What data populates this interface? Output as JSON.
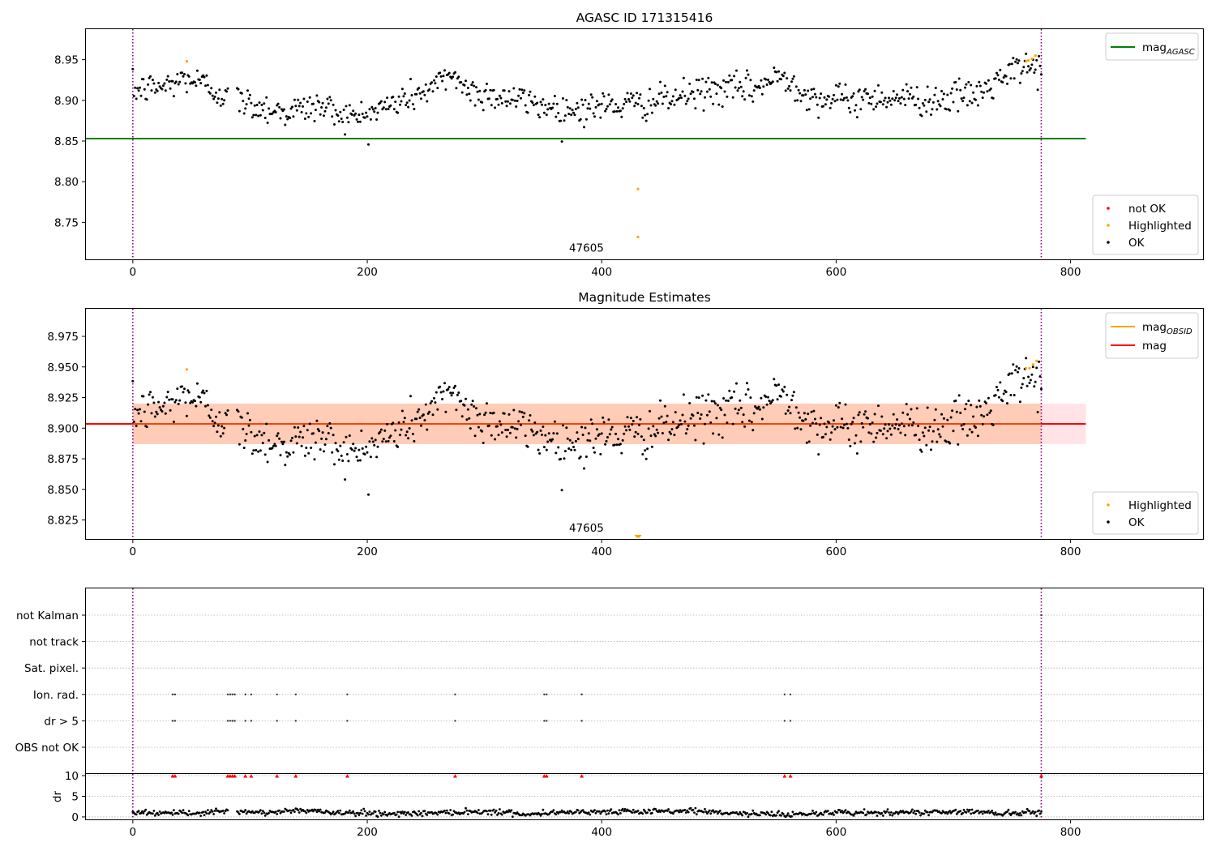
{
  "chart_data": [
    {
      "type": "scatter",
      "title": "AGASC ID 171315416",
      "xlim": [
        -40,
        913
      ],
      "ylim": [
        8.7045,
        8.9875
      ],
      "xticks": [
        0,
        200,
        400,
        600,
        800
      ],
      "yticks": [
        8.75,
        8.8,
        8.85,
        8.9,
        8.95
      ],
      "ytick_labels": [
        "8.75",
        "8.80",
        "8.85",
        "8.90",
        "8.95"
      ],
      "grid": false,
      "hline": {
        "label": "mag",
        "label_sub": "AGASC",
        "value": 8.853,
        "x": [
          -40,
          813
        ],
        "color": "#008000"
      },
      "vlines": [
        0,
        775
      ],
      "vline_color": "#800080",
      "annotation": {
        "text": "47605",
        "x": 387,
        "y": 8.715
      },
      "legend_lines": [
        {
          "label": "mag",
          "sub": "AGASC",
          "color": "#008000"
        }
      ],
      "legend_points": [
        {
          "label": "not OK",
          "color": "#ff0000"
        },
        {
          "label": "Highlighted",
          "color": "#ffa500"
        },
        {
          "label": "OK",
          "color": "#000000"
        }
      ],
      "legend_lines_loc": "upper right",
      "legend_points_loc": "lower right",
      "series": [
        {
          "name": "OK",
          "color": "#000000",
          "n": 775,
          "baseline": 8.9,
          "anchors": [
            [
              0,
              8.912
            ],
            [
              30,
              8.918
            ],
            [
              45,
              8.928
            ],
            [
              60,
              8.92
            ],
            [
              80,
              8.905
            ],
            [
              100,
              8.895
            ],
            [
              130,
              8.886
            ],
            [
              160,
              8.893
            ],
            [
              190,
              8.878
            ],
            [
              230,
              8.9
            ],
            [
              260,
              8.918
            ],
            [
              272,
              8.935
            ],
            [
              285,
              8.912
            ],
            [
              320,
              8.903
            ],
            [
              370,
              8.888
            ],
            [
              400,
              8.893
            ],
            [
              430,
              8.895
            ],
            [
              460,
              8.902
            ],
            [
              490,
              8.912
            ],
            [
              530,
              8.915
            ],
            [
              555,
              8.93
            ],
            [
              580,
              8.903
            ],
            [
              610,
              8.9
            ],
            [
              640,
              8.905
            ],
            [
              680,
              8.9
            ],
            [
              720,
              8.907
            ],
            [
              740,
              8.925
            ],
            [
              760,
              8.942
            ],
            [
              775,
              8.94
            ]
          ],
          "noise": 0.0095,
          "gaps": [
            [
              82,
              88
            ]
          ]
        },
        {
          "name": "Highlighted",
          "color": "#ffa500",
          "points": [
            [
              46,
              8.948
            ],
            [
              431,
              8.791
            ],
            [
              431,
              8.732
            ],
            [
              762,
              8.948
            ],
            [
              764,
              8.949
            ],
            [
              767,
              8.951
            ],
            [
              770,
              8.955
            ]
          ]
        }
      ]
    },
    {
      "type": "scatter",
      "title": "Magnitude Estimates",
      "xlim": [
        -40,
        913
      ],
      "ylim": [
        8.8095,
        8.9975
      ],
      "xticks": [
        0,
        200,
        400,
        600,
        800
      ],
      "yticks": [
        8.825,
        8.85,
        8.875,
        8.9,
        8.925,
        8.95,
        8.975
      ],
      "ytick_labels": [
        "8.825",
        "8.850",
        "8.875",
        "8.900",
        "8.925",
        "8.950",
        "8.975"
      ],
      "grid": false,
      "hline": {
        "label": "mag",
        "value": 8.9035,
        "x": [
          -40,
          813
        ],
        "color": "#ff0000"
      },
      "bands": [
        {
          "x": [
            0,
            813
          ],
          "y": [
            8.887,
            8.92
          ],
          "color": "#ffb0b8",
          "opacity": 0.35
        },
        {
          "x": [
            0,
            775
          ],
          "y": [
            8.887,
            8.92
          ],
          "color": "#ffa060",
          "opacity": 0.35
        }
      ],
      "vlines": [
        0,
        775
      ],
      "vline_color": "#800080",
      "annotation": {
        "text": "47605",
        "x": 387,
        "y": 8.816
      },
      "legend_lines": [
        {
          "label": "mag",
          "sub": "OBSID",
          "color": "#ffa500"
        },
        {
          "label": "mag",
          "sub": "",
          "color": "#ff0000"
        }
      ],
      "legend_points": [
        {
          "label": "Highlighted",
          "color": "#ffa500"
        },
        {
          "label": "OK",
          "color": "#000000"
        }
      ],
      "legend_lines_loc": "upper right",
      "legend_points_loc": "lower right",
      "series": [
        {
          "name": "OK",
          "color": "#000000",
          "n": 775,
          "baseline": 8.9,
          "anchors": [
            [
              0,
              8.912
            ],
            [
              30,
              8.918
            ],
            [
              45,
              8.928
            ],
            [
              60,
              8.92
            ],
            [
              80,
              8.905
            ],
            [
              100,
              8.895
            ],
            [
              130,
              8.886
            ],
            [
              160,
              8.893
            ],
            [
              190,
              8.878
            ],
            [
              230,
              8.9
            ],
            [
              260,
              8.918
            ],
            [
              272,
              8.935
            ],
            [
              285,
              8.912
            ],
            [
              320,
              8.903
            ],
            [
              370,
              8.888
            ],
            [
              400,
              8.893
            ],
            [
              430,
              8.895
            ],
            [
              460,
              8.902
            ],
            [
              490,
              8.912
            ],
            [
              530,
              8.915
            ],
            [
              555,
              8.93
            ],
            [
              580,
              8.903
            ],
            [
              610,
              8.9
            ],
            [
              640,
              8.905
            ],
            [
              680,
              8.9
            ],
            [
              720,
              8.907
            ],
            [
              740,
              8.925
            ],
            [
              760,
              8.942
            ],
            [
              775,
              8.94
            ]
          ],
          "noise": 0.0095,
          "gaps": [
            [
              82,
              88
            ]
          ]
        },
        {
          "name": "Highlighted",
          "color": "#ffa500",
          "points": [
            [
              46,
              8.948
            ],
            [
              762,
              8.949
            ],
            [
              765,
              8.949
            ],
            [
              768,
              8.952
            ],
            [
              771,
              8.955
            ]
          ]
        },
        {
          "name": "Highlighted-clipped",
          "color": "#ffa500",
          "points": [
            [
              430,
              8.8105
            ],
            [
              431,
              8.8105
            ],
            [
              432,
              8.8105
            ]
          ],
          "marker": "triangle-down"
        }
      ],
      "mag_obsid_line": {
        "x": [
          0,
          775
        ],
        "value": 8.9035
      }
    },
    {
      "type": "scatter",
      "title": "",
      "xlim": [
        -40,
        913
      ],
      "xticks": [
        0,
        200,
        400,
        600,
        800
      ],
      "flag_rows": [
        "not Kalman",
        "not track",
        "Sat. pixel.",
        "Ion. rad.",
        "dr > 5",
        "OBS not OK"
      ],
      "flag_grid": true,
      "flags": {
        "Ion. rad.": [
          34,
          36,
          81,
          83,
          85,
          87,
          96,
          101,
          123,
          139,
          183,
          275,
          351,
          353,
          383,
          556,
          561
        ],
        "dr > 5": [
          34,
          36,
          81,
          83,
          85,
          87,
          96,
          101,
          123,
          139,
          183,
          275,
          351,
          353,
          383,
          556,
          561
        ],
        "not Kalman": [
          775
        ]
      },
      "vlines": [
        0,
        775
      ],
      "vline_color": "#800080",
      "dr": {
        "ylabel": "dr",
        "ylim": [
          -0.6,
          10.4
        ],
        "yticks": [
          0,
          5,
          10
        ],
        "ytick_labels": [
          "0",
          "5",
          "10"
        ],
        "grid": true,
        "n": 775,
        "noise": 0.35,
        "anchors": [
          [
            0,
            1.2
          ],
          [
            40,
            0.8
          ],
          [
            80,
            1.3
          ],
          [
            110,
            1.0
          ],
          [
            140,
            1.6
          ],
          [
            180,
            1.0
          ],
          [
            220,
            0.8
          ],
          [
            260,
            1.0
          ],
          [
            300,
            1.4
          ],
          [
            340,
            0.6
          ],
          [
            360,
            1.2
          ],
          [
            400,
            1.3
          ],
          [
            440,
            1.2
          ],
          [
            480,
            1.5
          ],
          [
            520,
            0.8
          ],
          [
            560,
            0.6
          ],
          [
            600,
            1.1
          ],
          [
            640,
            0.9
          ],
          [
            680,
            1.2
          ],
          [
            720,
            1.4
          ],
          [
            740,
            0.7
          ],
          [
            760,
            1.1
          ],
          [
            775,
            0.9
          ]
        ],
        "gaps": [
          [
            82,
            88
          ]
        ],
        "clipped_color": "#ff0000",
        "clipped": [
          34,
          36,
          81,
          83,
          85,
          87,
          96,
          101,
          123,
          139,
          183,
          275,
          351,
          353,
          383,
          556,
          561,
          775
        ]
      }
    }
  ]
}
